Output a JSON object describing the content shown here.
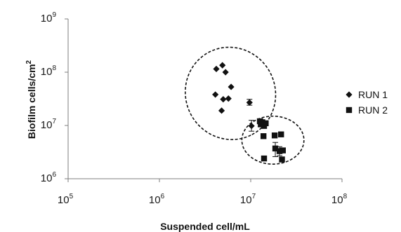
{
  "chart_data": {
    "type": "scatter",
    "title": "",
    "xlabel": "Suspended cell/mL",
    "ylabel": "Biofilm cells/cm",
    "ylabel_sup": "2",
    "x_scale": "log",
    "y_scale": "log",
    "xlim": [
      100000,
      100000000
    ],
    "ylim": [
      1000000,
      1000000000
    ],
    "x_ticks": [
      {
        "value": 100000,
        "base": "10",
        "exp": "5"
      },
      {
        "value": 1000000,
        "base": "10",
        "exp": "6"
      },
      {
        "value": 10000000,
        "base": "10",
        "exp": "7"
      },
      {
        "value": 100000000,
        "base": "10",
        "exp": "8"
      }
    ],
    "y_ticks": [
      {
        "value": 1000000,
        "base": "10",
        "exp": "6"
      },
      {
        "value": 10000000,
        "base": "10",
        "exp": "7"
      },
      {
        "value": 100000000,
        "base": "10",
        "exp": "8"
      },
      {
        "value": 1000000000,
        "base": "10",
        "exp": "9"
      }
    ],
    "grid": false,
    "legend_position": "right",
    "series": [
      {
        "name": "RUN 1",
        "marker": "diamond",
        "color": "#111111",
        "points": [
          {
            "x": 4200000,
            "y": 115000000
          },
          {
            "x": 4900000,
            "y": 135000000
          },
          {
            "x": 5300000,
            "y": 100000000
          },
          {
            "x": 6100000,
            "y": 53000000
          },
          {
            "x": 4100000,
            "y": 38000000
          },
          {
            "x": 5000000,
            "y": 31000000
          },
          {
            "x": 5700000,
            "y": 32000000
          },
          {
            "x": 4800000,
            "y": 19000000
          },
          {
            "x": 9700000,
            "y": 27000000
          },
          {
            "x": 10200000,
            "y": 9800000
          }
        ]
      },
      {
        "name": "RUN 2",
        "marker": "square",
        "color": "#111111",
        "points": [
          {
            "x": 12600000,
            "y": 12000000
          },
          {
            "x": 13400000,
            "y": 11500000
          },
          {
            "x": 14600000,
            "y": 11000000
          },
          {
            "x": 12900000,
            "y": 10500000
          },
          {
            "x": 14000000,
            "y": 9800000
          },
          {
            "x": 13800000,
            "y": 6300000
          },
          {
            "x": 18300000,
            "y": 6500000
          },
          {
            "x": 21500000,
            "y": 6800000
          },
          {
            "x": 18600000,
            "y": 3700000
          },
          {
            "x": 20700000,
            "y": 3300000
          },
          {
            "x": 22500000,
            "y": 3400000
          },
          {
            "x": 14000000,
            "y": 2400000
          },
          {
            "x": 22000000,
            "y": 2300000
          }
        ]
      }
    ],
    "error_bars": [
      {
        "x": 9700000,
        "y_low": 24000000,
        "y_high": 31000000
      },
      {
        "x": 10200000,
        "y_low": 7800000,
        "y_high": 12500000
      },
      {
        "x": 18600000,
        "y_low": 2600000,
        "y_high": 4800000
      },
      {
        "x": 20700000,
        "y_low": 2700000,
        "y_high": 4000000
      },
      {
        "x": 12800000,
        "y_low": 9500000,
        "y_high": 13000000
      }
    ],
    "ellipses": [
      {
        "group": "RUN 1",
        "cx": 6000000,
        "cy": 40000000,
        "rx_decades": 0.51,
        "ry_decades": 0.84,
        "angle": 64
      },
      {
        "group": "RUN 2",
        "cx": 17500000,
        "cy": 5300000,
        "rx_decades": 0.34,
        "ry_decades": 0.45,
        "angle": 0
      }
    ]
  }
}
